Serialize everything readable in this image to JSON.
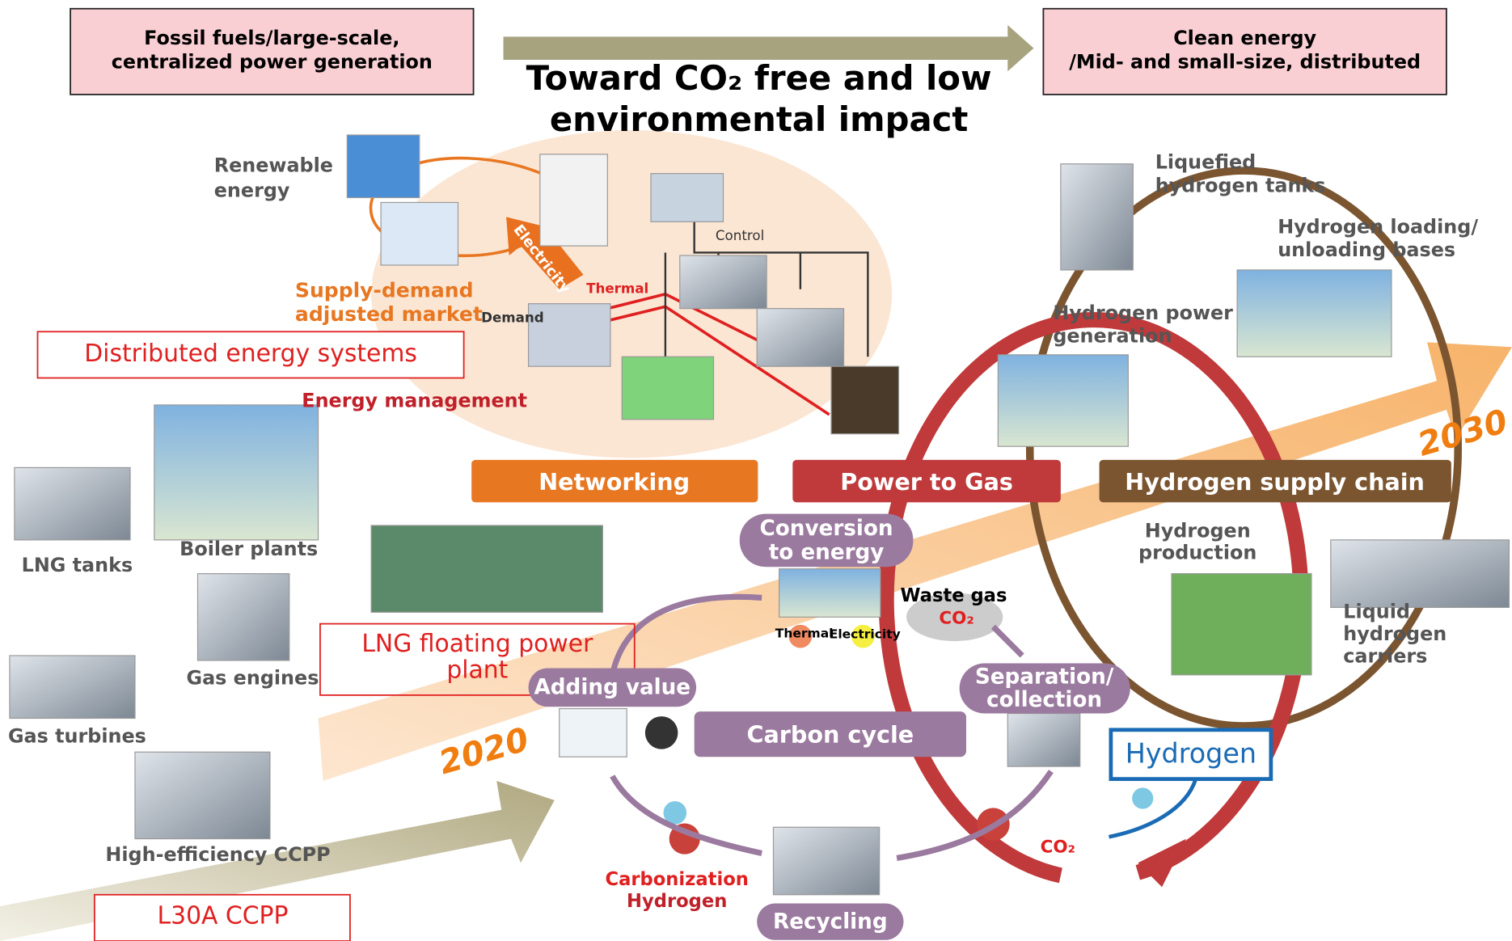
{
  "header": {
    "left_box": [
      "Fossil fuels/large-scale,",
      "centralized power generation"
    ],
    "right_box": [
      "Clean energy",
      "/Mid- and small-size, distributed"
    ],
    "title": [
      "Toward CO₂ free and low",
      "environmental impact"
    ]
  },
  "distributed": {
    "renewable": [
      "Renewable",
      "energy"
    ],
    "electricity": "Electricity",
    "thermal": "Thermal",
    "control": "Control",
    "demand": "Demand",
    "market": [
      "Supply-demand",
      "adjusted market"
    ],
    "systems_box": "Distributed energy systems",
    "energy_management": "Energy management"
  },
  "sections": [
    "Networking",
    "Power to Gas",
    "Hydrogen supply chain"
  ],
  "equipment": {
    "lng_tanks": "LNG tanks",
    "boiler_plants": "Boiler plants",
    "gas_engines": "Gas engines",
    "gas_turbines": "Gas turbines",
    "ccpp": "High-efficiency CCPP",
    "floating_box": [
      "LNG floating power",
      "plant"
    ],
    "l30a_box": "L30A CCPP"
  },
  "years": [
    "2020",
    "2030"
  ],
  "hydrogen_chain": {
    "tanks": [
      "Liquefied",
      "hydrogen tanks"
    ],
    "bases": [
      "Hydrogen loading/",
      "unloading bases"
    ],
    "power": [
      "Hydrogen power",
      "generation"
    ],
    "production": [
      "Hydrogen",
      "production"
    ],
    "carriers": [
      "Liquid",
      "hydrogen",
      "carriers"
    ]
  },
  "carbon_cycle": {
    "conversion": [
      "Conversion",
      "to energy"
    ],
    "waste_gas": "Waste gas",
    "co2": "CO₂",
    "thermal": "Thermal",
    "electricity": "Electricity",
    "separation": [
      "Separation/",
      "collection"
    ],
    "adding_value": "Adding value",
    "cycle": "Carbon cycle",
    "hydrogen": "Hydrogen",
    "co2_out": "CO₂",
    "carbonization": [
      "Carbonization",
      "Hydrogen"
    ],
    "recycling": "Recycling"
  }
}
